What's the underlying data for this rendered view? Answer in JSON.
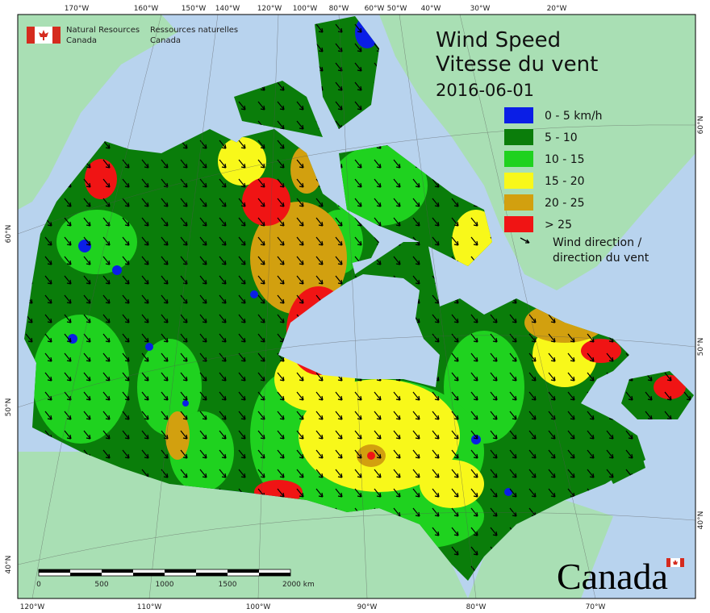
{
  "header": {
    "en_line1": "Natural Resources",
    "en_line2": "Canada",
    "fr_line1": "Ressources naturelles",
    "fr_line2": "Canada"
  },
  "title": {
    "line1": "Wind Speed",
    "line2": "Vitesse du vent",
    "date": "2016-06-01"
  },
  "legend": {
    "items": [
      {
        "label": "0 - 5 km/h",
        "color": "#0a1ee6"
      },
      {
        "label": "5 - 10",
        "color": "#0a7d0a"
      },
      {
        "label": "10 - 15",
        "color": "#1fd21f"
      },
      {
        "label": "15 - 20",
        "color": "#f8f81a"
      },
      {
        "label": "20 - 25",
        "color": "#d2a00f"
      },
      {
        "label": "> 25",
        "color": "#f01414"
      }
    ],
    "arrow_label": [
      "Wind direction /",
      "direction du vent"
    ]
  },
  "graticule": {
    "top": [
      "170°W",
      "160°W",
      "150°W",
      "140°W",
      "120°W",
      "100°W",
      "80°W",
      "60°W",
      "50°W",
      "40°W",
      "30°W",
      "20°W"
    ],
    "bottom": [
      "120°W",
      "110°W",
      "100°W",
      "90°W",
      "80°W",
      "70°W"
    ],
    "left": [
      "60°N",
      "50°N",
      "40°N"
    ],
    "right": [
      "60°N",
      "50°N",
      "40°N"
    ]
  },
  "scale": {
    "labels": [
      "0",
      "500",
      "1000",
      "1500",
      "2000 km"
    ]
  },
  "wordmark": "Canada"
}
